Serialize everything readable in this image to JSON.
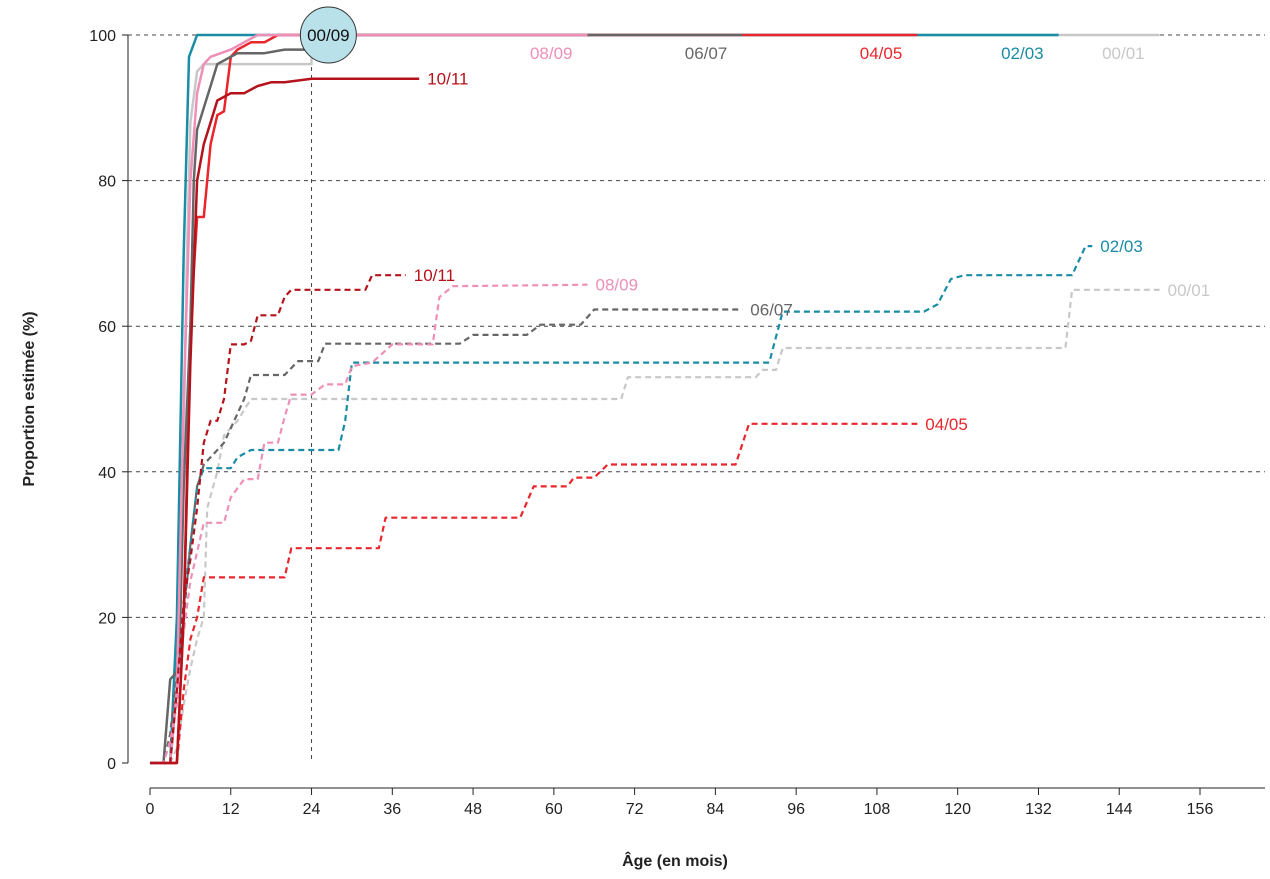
{
  "chart_data": {
    "type": "line",
    "xlabel": "Âge (en mois)",
    "ylabel": "Proportion estimée (%)",
    "xlim": [
      0,
      162
    ],
    "ylim": [
      0,
      100
    ],
    "xticks": [
      0,
      12,
      24,
      36,
      48,
      60,
      72,
      84,
      96,
      108,
      120,
      132,
      144,
      156
    ],
    "yticks": [
      0,
      20,
      40,
      60,
      80,
      100
    ],
    "grid": "horizontal dashed",
    "reference_line_x": 24,
    "highlight_label": "00/09",
    "series": [
      {
        "name": "00/01",
        "style": "solid",
        "color": "#c8c8c8",
        "label": "00/01",
        "label_pos": "top",
        "points": [
          [
            0,
            0
          ],
          [
            3,
            0
          ],
          [
            3.5,
            5
          ],
          [
            4.5,
            25
          ],
          [
            5,
            45
          ],
          [
            5.5,
            70
          ],
          [
            6,
            88
          ],
          [
            7,
            95
          ],
          [
            8,
            96
          ],
          [
            10,
            96
          ],
          [
            12,
            96
          ],
          [
            24,
            96
          ],
          [
            24,
            100
          ],
          [
            150,
            100
          ]
        ]
      },
      {
        "name": "00/01",
        "style": "dashed",
        "color": "#c8c8c8",
        "label": "00/01",
        "label_pos": "right",
        "points": [
          [
            0,
            0
          ],
          [
            3,
            0
          ],
          [
            4,
            2
          ],
          [
            5,
            8
          ],
          [
            6,
            13
          ],
          [
            7,
            17
          ],
          [
            8,
            20
          ],
          [
            8.5,
            35
          ],
          [
            10,
            40
          ],
          [
            11,
            45
          ],
          [
            13,
            47
          ],
          [
            15,
            50
          ],
          [
            40,
            50
          ],
          [
            70,
            50
          ],
          [
            71,
            53
          ],
          [
            90,
            53
          ],
          [
            91,
            54
          ],
          [
            93,
            54
          ],
          [
            94,
            57
          ],
          [
            136,
            57
          ],
          [
            137,
            65
          ],
          [
            150,
            65
          ]
        ]
      },
      {
        "name": "02/03",
        "style": "solid",
        "color": "#1a8ca6",
        "label": "02/03",
        "label_pos": "top",
        "points": [
          [
            0,
            0
          ],
          [
            3,
            0
          ],
          [
            4,
            20
          ],
          [
            5,
            70
          ],
          [
            5.8,
            97
          ],
          [
            7,
            100
          ],
          [
            135,
            100
          ]
        ]
      },
      {
        "name": "02/03",
        "style": "dashed",
        "color": "#1a8ca6",
        "label": "02/03",
        "label_pos": "right",
        "points": [
          [
            0,
            0
          ],
          [
            3,
            0
          ],
          [
            4,
            10
          ],
          [
            5,
            22
          ],
          [
            6,
            30
          ],
          [
            7,
            38
          ],
          [
            8,
            40.5
          ],
          [
            10,
            40.5
          ],
          [
            12,
            40.5
          ],
          [
            13,
            42
          ],
          [
            15,
            43
          ],
          [
            28,
            43
          ],
          [
            29,
            47
          ],
          [
            30,
            55
          ],
          [
            40,
            55
          ],
          [
            92,
            55
          ],
          [
            94,
            62
          ],
          [
            115,
            62
          ],
          [
            117,
            63
          ],
          [
            119,
            66.5
          ],
          [
            121,
            67
          ],
          [
            137,
            67
          ],
          [
            139,
            71
          ],
          [
            140,
            71
          ]
        ]
      },
      {
        "name": "04/05",
        "style": "solid",
        "color": "#e8262c",
        "label": "04/05",
        "label_pos": "top",
        "points": [
          [
            0,
            0
          ],
          [
            4,
            0
          ],
          [
            5,
            20
          ],
          [
            6,
            60
          ],
          [
            7,
            75
          ],
          [
            8,
            75
          ],
          [
            9,
            85
          ],
          [
            10,
            89
          ],
          [
            11,
            89.5
          ],
          [
            12,
            97
          ],
          [
            13,
            98
          ],
          [
            15,
            99
          ],
          [
            17,
            99
          ],
          [
            19,
            100
          ],
          [
            114,
            100
          ]
        ]
      },
      {
        "name": "04/05",
        "style": "dashed",
        "color": "#e8262c",
        "label": "04/05",
        "label_pos": "right",
        "points": [
          [
            0,
            0
          ],
          [
            4,
            0
          ],
          [
            5,
            10
          ],
          [
            6,
            17
          ],
          [
            7,
            20
          ],
          [
            8,
            25.5
          ],
          [
            10,
            25.5
          ],
          [
            20,
            25.5
          ],
          [
            21,
            29.5
          ],
          [
            34,
            29.5
          ],
          [
            35,
            33.7
          ],
          [
            55,
            33.7
          ],
          [
            57,
            38
          ],
          [
            62,
            38
          ],
          [
            63,
            39.2
          ],
          [
            66,
            39.2
          ],
          [
            68,
            41
          ],
          [
            87,
            41
          ],
          [
            89,
            46.6
          ],
          [
            114,
            46.6
          ]
        ]
      },
      {
        "name": "06/07",
        "style": "solid",
        "color": "#666666",
        "label": "06/07",
        "label_pos": "top",
        "points": [
          [
            0,
            0
          ],
          [
            2,
            0
          ],
          [
            3,
            11.5
          ],
          [
            4,
            12.5
          ],
          [
            4.5,
            20
          ],
          [
            5,
            38
          ],
          [
            6,
            60
          ],
          [
            6.5,
            80
          ],
          [
            7,
            87
          ],
          [
            8,
            90
          ],
          [
            9,
            93
          ],
          [
            10,
            96
          ],
          [
            12,
            97
          ],
          [
            13,
            97.5
          ],
          [
            17,
            97.5
          ],
          [
            20,
            98
          ],
          [
            24,
            98
          ],
          [
            24,
            100
          ],
          [
            88,
            100
          ]
        ]
      },
      {
        "name": "06/07",
        "style": "dashed",
        "color": "#666666",
        "label": "06/07",
        "label_pos": "right",
        "points": [
          [
            0,
            0
          ],
          [
            2,
            0
          ],
          [
            3,
            4
          ],
          [
            4,
            12
          ],
          [
            5,
            20
          ],
          [
            6,
            30
          ],
          [
            7,
            38
          ],
          [
            8,
            41
          ],
          [
            10,
            43
          ],
          [
            11,
            44
          ],
          [
            12,
            46
          ],
          [
            14,
            50
          ],
          [
            15,
            53.3
          ],
          [
            20,
            53.3
          ],
          [
            22,
            55.2
          ],
          [
            25,
            55.2
          ],
          [
            26,
            57.6
          ],
          [
            46,
            57.6
          ],
          [
            48,
            58.8
          ],
          [
            56,
            58.8
          ],
          [
            58,
            60.2
          ],
          [
            64,
            60.2
          ],
          [
            66,
            62.3
          ],
          [
            88,
            62.3
          ]
        ]
      },
      {
        "name": "08/09",
        "style": "solid",
        "color": "#ef8fb8",
        "label": "08/09",
        "label_pos": "top",
        "points": [
          [
            0,
            0
          ],
          [
            3,
            0
          ],
          [
            4,
            10
          ],
          [
            5,
            50
          ],
          [
            6,
            80
          ],
          [
            7,
            92
          ],
          [
            8,
            96
          ],
          [
            9,
            97
          ],
          [
            12,
            98
          ],
          [
            16,
            100
          ],
          [
            65,
            100
          ]
        ]
      },
      {
        "name": "08/09",
        "style": "dashed",
        "color": "#ef8fb8",
        "label": "08/09",
        "label_pos": "right",
        "points": [
          [
            0,
            0
          ],
          [
            2,
            0
          ],
          [
            3,
            3
          ],
          [
            4,
            8
          ],
          [
            5,
            18
          ],
          [
            6,
            25
          ],
          [
            7,
            29
          ],
          [
            8,
            33
          ],
          [
            10,
            33
          ],
          [
            11,
            33
          ],
          [
            12,
            36.5
          ],
          [
            14,
            39
          ],
          [
            16,
            39
          ],
          [
            17,
            44
          ],
          [
            19,
            44
          ],
          [
            20,
            47.5
          ],
          [
            21,
            50.6
          ],
          [
            24,
            50.6
          ],
          [
            26,
            52
          ],
          [
            29,
            52
          ],
          [
            30,
            54.5
          ],
          [
            33,
            55
          ],
          [
            36,
            57.5
          ],
          [
            42,
            57.5
          ],
          [
            43,
            64
          ],
          [
            45,
            65.5
          ],
          [
            65,
            65.7
          ]
        ]
      },
      {
        "name": "10/11",
        "style": "solid",
        "color": "#b5121b",
        "label": "10/11",
        "label_pos": "right",
        "points": [
          [
            0,
            0
          ],
          [
            4,
            0
          ],
          [
            5,
            20
          ],
          [
            6,
            55
          ],
          [
            7,
            80
          ],
          [
            8,
            85
          ],
          [
            9,
            88
          ],
          [
            10,
            91
          ],
          [
            11,
            91.5
          ],
          [
            12,
            92
          ],
          [
            14,
            92
          ],
          [
            16,
            93
          ],
          [
            18,
            93.5
          ],
          [
            20,
            93.5
          ],
          [
            24,
            94
          ],
          [
            40,
            94
          ]
        ]
      },
      {
        "name": "10/11",
        "style": "dashed",
        "color": "#b5121b",
        "label": "10/11",
        "label_pos": "right",
        "points": [
          [
            0,
            0
          ],
          [
            3,
            0
          ],
          [
            4,
            10
          ],
          [
            5,
            22
          ],
          [
            6,
            28
          ],
          [
            7,
            35
          ],
          [
            8,
            44
          ],
          [
            9,
            47
          ],
          [
            10,
            47
          ],
          [
            11,
            50
          ],
          [
            12,
            57.5
          ],
          [
            14,
            57.5
          ],
          [
            15,
            58
          ],
          [
            16,
            61.5
          ],
          [
            18,
            61.5
          ],
          [
            19,
            61.5
          ],
          [
            20,
            64
          ],
          [
            21,
            65
          ],
          [
            31,
            65
          ],
          [
            32,
            65
          ],
          [
            33,
            67
          ],
          [
            35,
            67
          ],
          [
            38,
            67
          ]
        ]
      }
    ]
  }
}
